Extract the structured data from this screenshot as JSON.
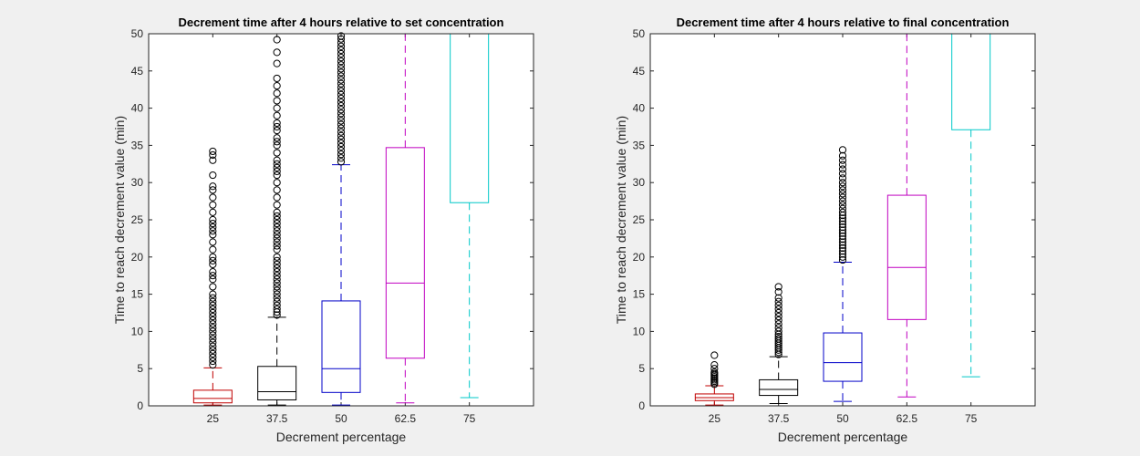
{
  "chart_data": [
    {
      "type": "box",
      "title": "Decrement time after 4 hours relative to set concentration",
      "xlabel": "Decrement percentage",
      "ylabel": "Time to reach decrement value (min)",
      "ylim": [
        0,
        50
      ],
      "yticks": [
        0,
        5,
        10,
        15,
        20,
        25,
        30,
        35,
        40,
        45,
        50
      ],
      "grid": false,
      "categories": [
        "25",
        "37.5",
        "50",
        "62.5",
        "75"
      ],
      "boxes": [
        {
          "category": "25",
          "color": "#c00000",
          "min": 0.1,
          "q1": 0.4,
          "median": 1.0,
          "q3": 2.1,
          "max": 5.1,
          "outliers": [
            5.5,
            6,
            6.5,
            7,
            7.5,
            8,
            8.5,
            9,
            9.5,
            10,
            10.5,
            11,
            11.5,
            12,
            12.5,
            13,
            13.5,
            14,
            14.5,
            15,
            16,
            17,
            17.5,
            18,
            19,
            19.5,
            20,
            21,
            22,
            23,
            23.5,
            24,
            24.5,
            25,
            26,
            27,
            28,
            29,
            29.5,
            31,
            33,
            33.7,
            34.2
          ]
        },
        {
          "category": "37.5",
          "color": "#000000",
          "min": 0.1,
          "q1": 0.8,
          "median": 1.9,
          "q3": 5.3,
          "max": 11.9,
          "outliers": [
            12.2,
            12.6,
            13,
            13.5,
            14,
            14.5,
            15,
            15.5,
            16,
            16.5,
            17,
            17.5,
            18,
            18.5,
            19,
            19.5,
            20,
            21,
            21.5,
            22,
            22.5,
            23,
            23.5,
            24,
            24.5,
            25,
            25.5,
            26,
            27,
            28,
            29,
            30,
            31,
            31.5,
            32,
            32.5,
            33,
            34,
            35,
            35.5,
            36,
            37,
            37.5,
            38,
            39,
            40,
            41,
            42,
            43,
            44,
            46,
            47.5,
            49.2
          ]
        },
        {
          "category": "50",
          "color": "#0000c8",
          "min": 0.1,
          "q1": 1.8,
          "median": 5.0,
          "q3": 14.1,
          "max": 32.4,
          "outliers": [
            32.8,
            33.3,
            33.8,
            34.3,
            34.8,
            35.3,
            35.8,
            36.3,
            36.8,
            37.3,
            37.8,
            38.3,
            38.8,
            39.3,
            39.8,
            40.3,
            40.8,
            41.3,
            41.8,
            42.3,
            42.8,
            43.3,
            43.8,
            44.3,
            44.8,
            45.3,
            45.8,
            46.3,
            46.8,
            47.3,
            47.8,
            48.3,
            48.8,
            49.3,
            49.7
          ]
        },
        {
          "category": "62.5",
          "color": "#c000c0",
          "min": 0.4,
          "q1": 6.4,
          "median": 16.5,
          "q3": 34.7,
          "max": 50,
          "outliers": []
        },
        {
          "category": "75",
          "color": "#00c8c8",
          "min": 1.1,
          "q1": 27.3,
          "median": 50,
          "q3": 50,
          "max": 50,
          "outliers": []
        }
      ]
    },
    {
      "type": "box",
      "title": "Decrement time after 4 hours relative to final concentration",
      "xlabel": "Decrement percentage",
      "ylabel": "Time to reach decrement value (min)",
      "ylim": [
        0,
        50
      ],
      "yticks": [
        0,
        5,
        10,
        15,
        20,
        25,
        30,
        35,
        40,
        45,
        50
      ],
      "grid": false,
      "categories": [
        "25",
        "37.5",
        "50",
        "62.5",
        "75"
      ],
      "boxes": [
        {
          "category": "25",
          "color": "#c00000",
          "min": 0.1,
          "q1": 0.7,
          "median": 1.1,
          "q3": 1.6,
          "max": 2.7,
          "outliers": [
            2.9,
            3.1,
            3.3,
            3.5,
            3.7,
            3.9,
            4.1,
            4.3,
            4.5,
            5,
            5.5,
            6.8
          ]
        },
        {
          "category": "37.5",
          "color": "#000000",
          "min": 0.3,
          "q1": 1.4,
          "median": 2.2,
          "q3": 3.5,
          "max": 6.6,
          "outliers": [
            6.9,
            7.2,
            7.5,
            7.8,
            8.1,
            8.4,
            8.7,
            9,
            9.3,
            9.6,
            10,
            10.5,
            11,
            11.5,
            12,
            12.5,
            13,
            13.5,
            14,
            14.5,
            15.3,
            16
          ]
        },
        {
          "category": "50",
          "color": "#0000c8",
          "min": 0.6,
          "q1": 3.3,
          "median": 5.8,
          "q3": 9.8,
          "max": 19.3,
          "outliers": [
            19.6,
            20,
            20.4,
            20.8,
            21.2,
            21.6,
            22,
            22.4,
            22.8,
            23.2,
            23.6,
            24,
            24.4,
            24.8,
            25.2,
            25.6,
            26,
            26.5,
            27,
            27.5,
            28,
            28.5,
            29,
            29.5,
            30,
            30.6,
            31.2,
            31.8,
            32.4,
            33,
            33.6,
            34.4
          ]
        },
        {
          "category": "62.5",
          "color": "#c000c0",
          "min": 1.2,
          "q1": 11.6,
          "median": 18.6,
          "q3": 28.3,
          "max": 50,
          "outliers": []
        },
        {
          "category": "75",
          "color": "#00c8c8",
          "min": 3.9,
          "q1": 37.1,
          "median": 50,
          "q3": 50,
          "max": 50,
          "outliers": []
        }
      ]
    }
  ]
}
